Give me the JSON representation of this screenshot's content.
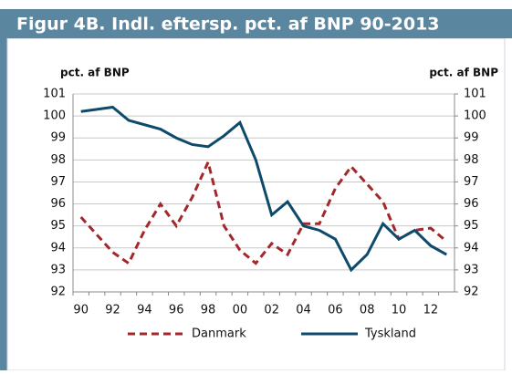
{
  "chart_data": {
    "type": "line",
    "title": "Figur 4B. Indl. eftersp. pct. af BNP 90-2013",
    "y_label": "pct. af BNP",
    "y2_label": "pct. af BNP",
    "categories": [
      "90",
      null,
      "92",
      null,
      "94",
      null,
      "96",
      null,
      "98",
      null,
      "00",
      null,
      "02",
      null,
      "04",
      null,
      "06",
      null,
      "08",
      null,
      "10",
      null,
      "12",
      null
    ],
    "series": [
      {
        "name": "Danmark",
        "color": "#a3282c",
        "linestyle": "dashed",
        "values": [
          95.4,
          94.6,
          93.8,
          93.3,
          94.8,
          96.0,
          95.0,
          96.3,
          97.9,
          95.0,
          93.9,
          93.3,
          94.2,
          93.7,
          95.1,
          95.1,
          96.7,
          97.7,
          96.9,
          96.1,
          94.4,
          94.8,
          94.9,
          94.3
        ]
      },
      {
        "name": "Tyskland",
        "color": "#0d4a6c",
        "linestyle": "solid",
        "values": [
          100.2,
          100.3,
          100.4,
          99.8,
          99.6,
          99.4,
          99.0,
          98.7,
          98.6,
          99.1,
          99.7,
          98.0,
          95.5,
          96.1,
          95.0,
          94.8,
          94.4,
          93.0,
          93.7,
          95.1,
          94.4,
          94.8,
          94.1,
          93.7
        ]
      }
    ],
    "ylim": [
      92,
      101
    ],
    "yticks": [
      92,
      93,
      94,
      95,
      96,
      97,
      98,
      99,
      100,
      101
    ],
    "y2lim": [
      92,
      101
    ],
    "y2ticks": [
      92,
      93,
      94,
      95,
      96,
      97,
      98,
      99,
      100,
      101
    ],
    "grid": true,
    "legend": "bottom"
  }
}
